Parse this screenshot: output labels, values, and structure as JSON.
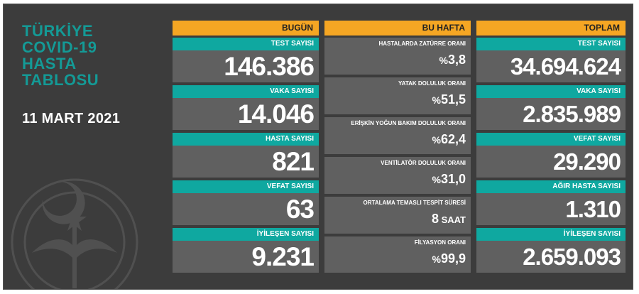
{
  "title_lines": [
    "TÜRKİYE",
    "COVID-19",
    "HASTA",
    "TABLOSU"
  ],
  "date": "11 MART 2021",
  "colors": {
    "teal": "#0fa8a0",
    "orange": "#f5a623",
    "panel": "#3c3c3c",
    "card": "#606060",
    "title": "#149a96"
  },
  "today": {
    "header": "BUGÜN",
    "cards": [
      {
        "label": "TEST SAYISI",
        "value": "146.386"
      },
      {
        "label": "VAKA SAYISI",
        "value": "14.046"
      },
      {
        "label": "HASTA SAYISI",
        "value": "821"
      },
      {
        "label": "VEFAT SAYISI",
        "value": "63"
      },
      {
        "label": "İYİLEŞEN SAYISI",
        "value": "9.231"
      }
    ]
  },
  "week": {
    "header": "BU HAFTA",
    "cards": [
      {
        "label": "HASTALARDA ZATÜRRE ORANI",
        "prefix": "%",
        "value": "3,8"
      },
      {
        "label": "YATAK DOLULUK ORANI",
        "prefix": "%",
        "value": "51,5"
      },
      {
        "label": "ERİŞKİN YOĞUN BAKIM DOLULUK ORANI",
        "prefix": "%",
        "value": "62,4"
      },
      {
        "label": "VENTİLATÖR DOLULUK ORANI",
        "prefix": "%",
        "value": "31,0"
      },
      {
        "label": "ORTALAMA TEMASLI TESPİT SÜRESİ",
        "value": "8",
        "unit": " SAAT"
      },
      {
        "label": "FİLYASYON ORANI",
        "prefix": "%",
        "value": "99,9"
      }
    ]
  },
  "total": {
    "header": "TOPLAM",
    "cards": [
      {
        "label": "TEST SAYISI",
        "value": "34.694.624"
      },
      {
        "label": "VAKA SAYISI",
        "value": "2.835.989"
      },
      {
        "label": "VEFAT SAYISI",
        "value": "29.290"
      },
      {
        "label": "AĞIR HASTA SAYISI",
        "value": "1.310"
      },
      {
        "label": "İYİLEŞEN SAYISI",
        "value": "2.659.093"
      }
    ]
  }
}
